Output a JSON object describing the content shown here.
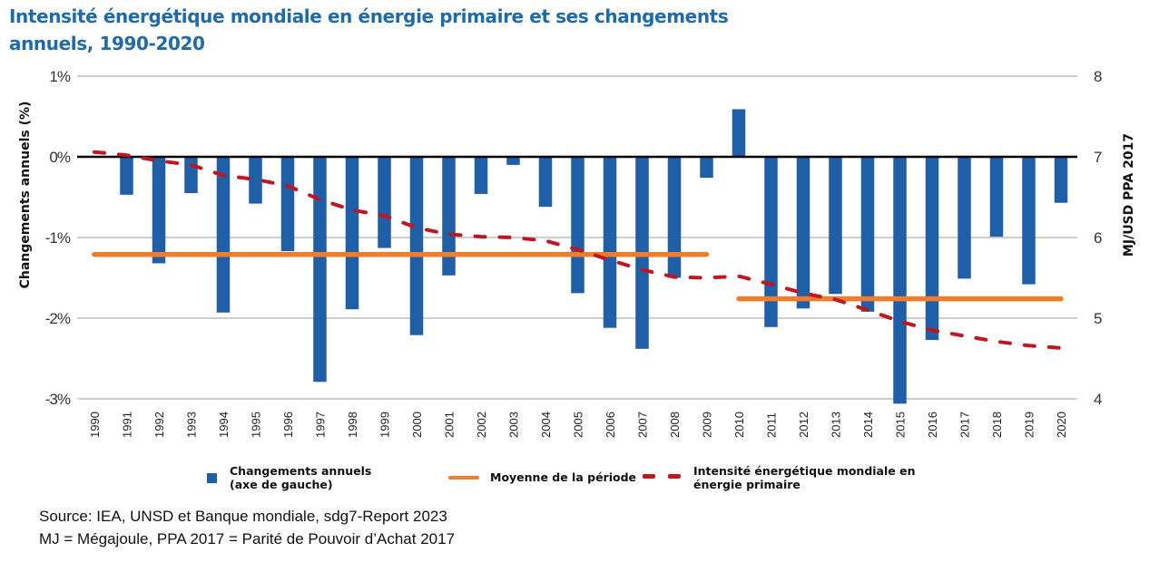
{
  "title": {
    "line1": "Intensité énergétique mondiale en énergie primaire et ses changements",
    "line2": "annuels, 1990-2020"
  },
  "chart_data": {
    "type": "bar",
    "title": "Intensité énergétique mondiale en énergie primaire et ses changements annuels, 1990-2020",
    "categories": [
      "1990",
      "1991",
      "1992",
      "1993",
      "1994",
      "1995",
      "1996",
      "1997",
      "1998",
      "1999",
      "2000",
      "2001",
      "2002",
      "2003",
      "2004",
      "2005",
      "2006",
      "2007",
      "2008",
      "2009",
      "2010",
      "2011",
      "2012",
      "2013",
      "2014",
      "2015",
      "2016",
      "2017",
      "2018",
      "2019",
      "2020"
    ],
    "ylabel": "Changements annuels (%)",
    "ylabel_right": "MJ/USD PPA 2017",
    "ylim": [
      -3,
      1
    ],
    "ylim_right": [
      4,
      8
    ],
    "yticks": [
      "1%",
      "0%",
      "-1%",
      "-2%",
      "-3%"
    ],
    "yticks_values": [
      1,
      0,
      -1,
      -2,
      -3
    ],
    "yticks_right": [
      "8",
      "7",
      "6",
      "5",
      "4"
    ],
    "yticks_right_values": [
      8,
      7,
      6,
      5,
      4
    ],
    "grid": true,
    "legend_position": "bottom",
    "series": [
      {
        "name": "Changements annuels (axe de gauche)",
        "type": "bar",
        "axis": "left",
        "color": "#1f5fa8",
        "values": [
          null,
          -0.47,
          -1.32,
          -0.45,
          -1.93,
          -0.58,
          -1.17,
          -2.79,
          -1.89,
          -1.13,
          -2.21,
          -1.47,
          -0.46,
          -0.1,
          -0.62,
          -1.69,
          -2.12,
          -2.38,
          -1.5,
          -0.26,
          0.59,
          -2.11,
          -1.88,
          -1.7,
          -1.92,
          -3.06,
          -2.27,
          -1.51,
          -0.99,
          -1.58,
          -0.57
        ]
      },
      {
        "name": "Moyenne de la période",
        "type": "segments",
        "axis": "left",
        "color": "#f07d2c",
        "segments": [
          {
            "from": "1990",
            "to": "2009",
            "value": -1.21
          },
          {
            "from": "2010",
            "to": "2020",
            "value": -1.76
          }
        ]
      },
      {
        "name": "Intensité énergétique mondiale en énergie primaire",
        "type": "line",
        "style": "dashed",
        "axis": "right",
        "color": "#c0161f",
        "values": [
          7.06,
          7.02,
          6.95,
          6.9,
          6.77,
          6.72,
          6.64,
          6.47,
          6.34,
          6.27,
          6.12,
          6.04,
          6.01,
          6.0,
          5.96,
          5.85,
          5.72,
          5.6,
          5.51,
          5.5,
          5.52,
          5.42,
          5.31,
          5.23,
          5.1,
          4.96,
          4.85,
          4.78,
          4.71,
          4.66,
          4.63
        ]
      }
    ]
  },
  "legend": {
    "bars_line1": "Changements annuels",
    "bars_line2": "(axe de gauche)",
    "average": "Moyenne de la période",
    "intensity_line1": "Intensité énergétique mondiale en",
    "intensity_line2": "énergie primaire"
  },
  "footer": {
    "source": "Source: IEA, UNSD et Banque mondiale, sdg7-Report 2023",
    "note": "MJ = Mégajoule, PPA 2017 = Parité de Pouvoir d’Achat 2017"
  }
}
